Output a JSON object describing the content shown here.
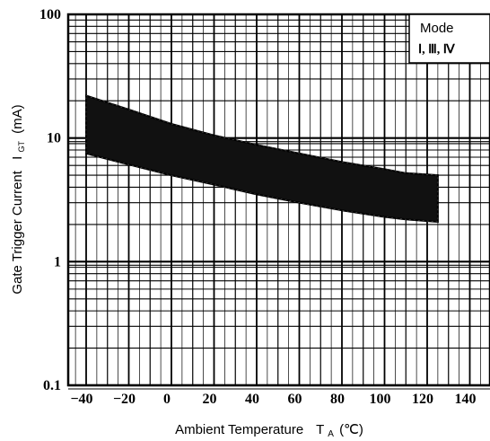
{
  "chart_data": {
    "type": "area",
    "title": "",
    "xlabel": {
      "main": "Ambient Temperature",
      "symbol": "T",
      "subscript": "A",
      "unit": "(℃)"
    },
    "ylabel": {
      "main": "Gate Trigger Current",
      "symbol": "I",
      "subscript": "GT",
      "unit": "(mA)"
    },
    "x_ticks": [
      -40,
      -20,
      0,
      20,
      40,
      60,
      80,
      100,
      120,
      140
    ],
    "x_tick_labels": [
      "−40",
      "−20",
      "0",
      "20",
      "40",
      "60",
      "80",
      "100",
      "120",
      "140"
    ],
    "y_ticks": [
      0.1,
      1,
      10,
      100
    ],
    "y_tick_labels": [
      "0.1",
      "1",
      "10",
      "100"
    ],
    "xlim": [
      -45,
      145
    ],
    "ylim": [
      0.1,
      100
    ],
    "yscale": "log",
    "grid": true,
    "legend": {
      "position": "top-right",
      "title": "Mode",
      "entries": "Ⅰ, Ⅲ, Ⅳ"
    },
    "series": [
      {
        "band": true,
        "x": [
          -40,
          -20,
          0,
          20,
          40,
          60,
          80,
          100,
          110,
          125
        ],
        "upper": [
          22,
          17,
          13,
          10.5,
          8.8,
          7.5,
          6.4,
          5.6,
          5.2,
          5.0
        ],
        "lower": [
          7.5,
          6.1,
          5.0,
          4.2,
          3.5,
          3.0,
          2.6,
          2.3,
          2.2,
          2.1
        ]
      }
    ]
  }
}
